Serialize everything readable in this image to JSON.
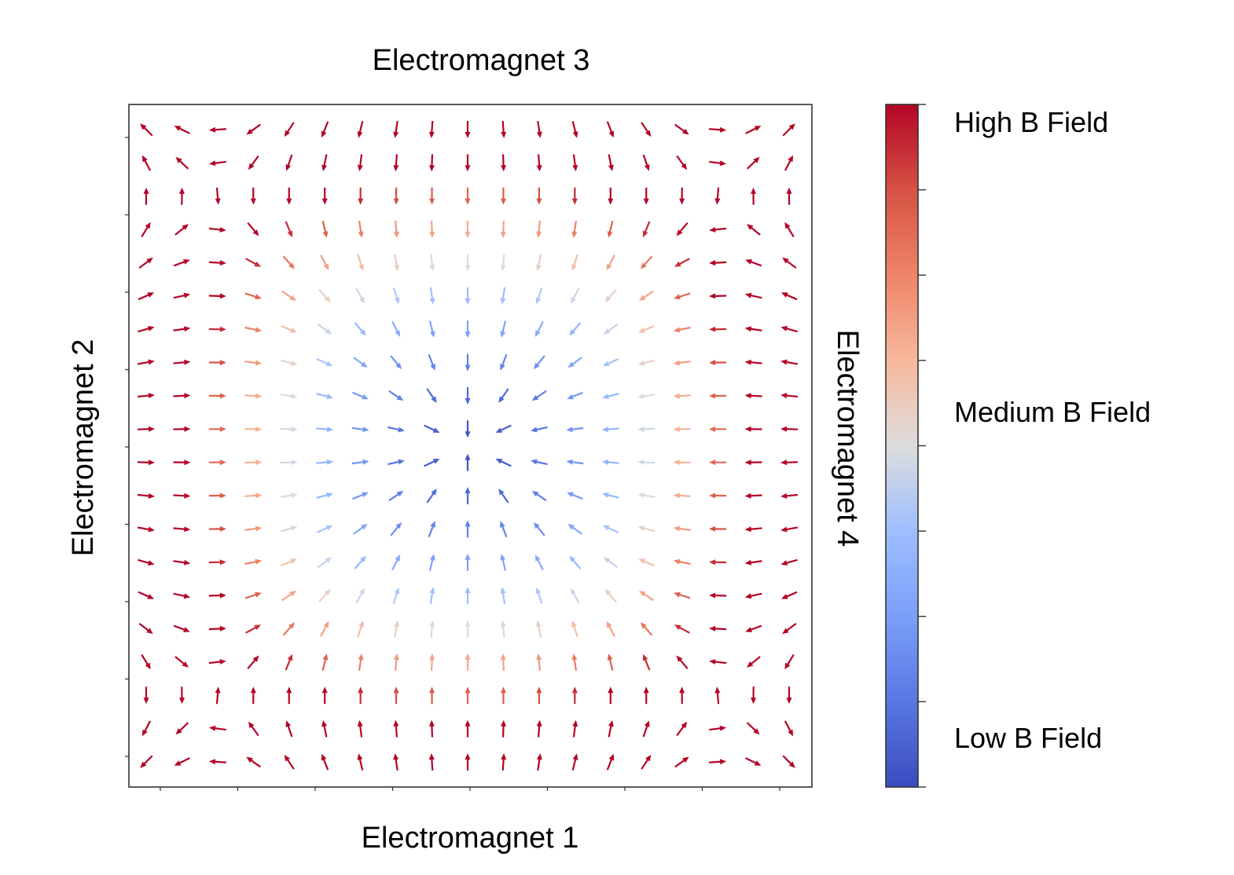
{
  "chart_data": {
    "type": "quiver",
    "title": "",
    "axis_labels": {
      "bottom": "Electromagnet 1",
      "left": "Electromagnet 2",
      "top": "Electromagnet 3",
      "right": "Electromagnet 4"
    },
    "grid": false,
    "tick_labels": false,
    "field_model": {
      "description": "quadrupole-like field: arrows converge toward center horizontally-centered row and vertically-centered column",
      "grid_size": [
        19,
        20
      ],
      "x_range": [
        -1,
        1
      ],
      "y_range": [
        -1,
        1
      ]
    },
    "colorbar": {
      "colormap": "coolwarm",
      "position": "right",
      "labels": [
        {
          "level": "high",
          "text": "High B Field"
        },
        {
          "level": "medium",
          "text": "Medium B Field"
        },
        {
          "level": "low",
          "text": "Low B Field"
        }
      ],
      "colors": {
        "low": "#3b4cc0",
        "mid": "#dddddd",
        "high": "#b40426"
      }
    }
  }
}
